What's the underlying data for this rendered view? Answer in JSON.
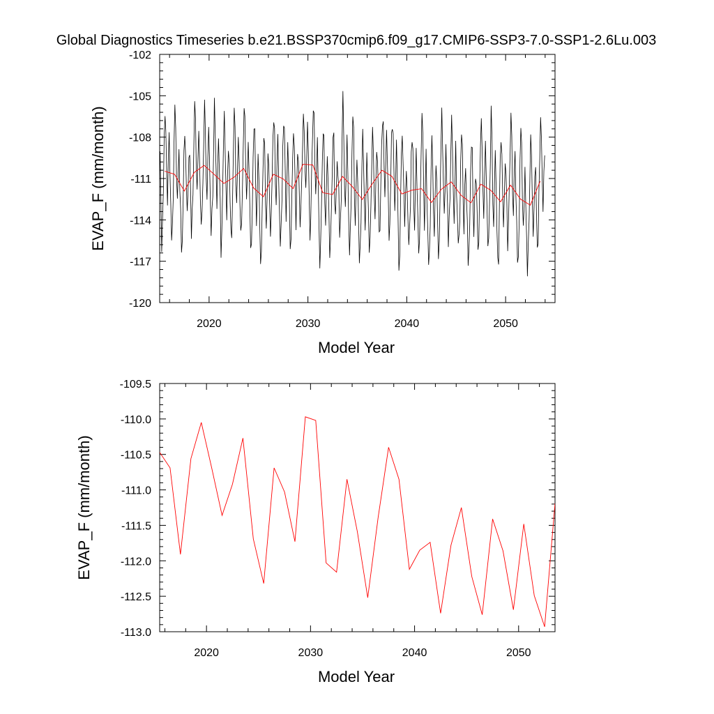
{
  "title": "Global Diagnostics Timeseries b.e21.BSSP370cmip6.f09_g17.CMIP6-SSP3-7.0-SSP1-2.6Lu.003",
  "colors": {
    "monthly": "#000000",
    "annual": "#ff0000",
    "axis": "#000000",
    "background": "#ffffff"
  },
  "chart_data": [
    {
      "type": "line",
      "panel": "top",
      "xlabel": "Model Year",
      "ylabel": "EVAP_F (mm/month)",
      "xlim": [
        2015,
        2055
      ],
      "ylim": [
        -120,
        -102
      ],
      "x_ticks": [
        2020,
        2030,
        2040,
        2050
      ],
      "x_tick_labels": [
        "2020",
        "2030",
        "2040",
        "2050"
      ],
      "y_ticks": [
        -120,
        -117,
        -114,
        -111,
        -108,
        -105,
        -102
      ],
      "y_tick_labels": [
        "-120",
        "-117",
        "-114",
        "-111",
        "-108",
        "-105",
        "-102"
      ],
      "series": [
        {
          "name": "monthly",
          "start_year": 2015.04,
          "step": 0.0833333,
          "monthly_profile": [
            -110.5,
            -113.0,
            -115.8,
            -114.8,
            -112.2,
            -109.0,
            -106.5,
            -107.9,
            -111.4,
            -113.5,
            -110.9,
            -108.6
          ],
          "annual_means": [
            -110.47,
            -110.69,
            -111.91,
            -110.56,
            -110.05,
            -110.69,
            -111.36,
            -110.92,
            -110.27,
            -111.69,
            -112.32,
            -110.69,
            -111.03,
            -111.73,
            -109.97,
            -110.02,
            -112.03,
            -112.16,
            -110.85,
            -111.59,
            -112.52,
            -111.39,
            -110.4,
            -110.85,
            -112.12,
            -111.85,
            -111.74,
            -112.74,
            -111.78,
            -111.25,
            -112.22,
            -112.76,
            -111.41,
            -111.86,
            -112.69,
            -111.48,
            -112.49,
            -112.93,
            -111.19
          ]
        },
        {
          "name": "annual mean",
          "x": [
            2015.5,
            2016.5,
            2017.5,
            2018.5,
            2019.5,
            2020.5,
            2021.5,
            2022.5,
            2023.5,
            2024.5,
            2025.5,
            2026.5,
            2027.5,
            2028.5,
            2029.5,
            2030.5,
            2031.5,
            2032.5,
            2033.5,
            2034.5,
            2035.5,
            2036.5,
            2037.5,
            2038.5,
            2039.5,
            2040.5,
            2041.5,
            2042.5,
            2043.5,
            2044.5,
            2045.5,
            2046.5,
            2047.5,
            2048.5,
            2049.5,
            2050.5,
            2051.5,
            2052.5,
            2053.5
          ],
          "values": [
            -110.47,
            -110.69,
            -111.91,
            -110.56,
            -110.05,
            -110.69,
            -111.36,
            -110.92,
            -110.27,
            -111.69,
            -112.32,
            -110.69,
            -111.03,
            -111.73,
            -109.97,
            -110.02,
            -112.03,
            -112.16,
            -110.85,
            -111.59,
            -112.52,
            -111.39,
            -110.4,
            -110.85,
            -112.12,
            -111.85,
            -111.74,
            -112.74,
            -111.78,
            -111.25,
            -112.22,
            -112.76,
            -111.41,
            -111.86,
            -112.69,
            -111.48,
            -112.49,
            -112.93,
            -111.19
          ]
        }
      ]
    },
    {
      "type": "line",
      "panel": "bottom",
      "xlabel": "Model Year",
      "ylabel": "EVAP_F (mm/month)",
      "xlim": [
        2015.5,
        2053.5
      ],
      "ylim": [
        -113.0,
        -109.5
      ],
      "x_ticks": [
        2020,
        2030,
        2040,
        2050
      ],
      "x_tick_labels": [
        "2020",
        "2030",
        "2040",
        "2050"
      ],
      "y_ticks": [
        -113.0,
        -112.5,
        -112.0,
        -111.5,
        -111.0,
        -110.5,
        -110.0,
        -109.5
      ],
      "y_tick_labels": [
        "-113.0",
        "-112.5",
        "-112.0",
        "-111.5",
        "-111.0",
        "-110.5",
        "-110.0",
        "-109.5"
      ],
      "series": [
        {
          "name": "annual mean",
          "x": [
            2015.5,
            2016.5,
            2017.5,
            2018.5,
            2019.5,
            2020.5,
            2021.5,
            2022.5,
            2023.5,
            2024.5,
            2025.5,
            2026.5,
            2027.5,
            2028.5,
            2029.5,
            2030.5,
            2031.5,
            2032.5,
            2033.5,
            2034.5,
            2035.5,
            2036.5,
            2037.5,
            2038.5,
            2039.5,
            2040.5,
            2041.5,
            2042.5,
            2043.5,
            2044.5,
            2045.5,
            2046.5,
            2047.5,
            2048.5,
            2049.5,
            2050.5,
            2051.5,
            2052.5,
            2053.5
          ],
          "values": [
            -110.47,
            -110.69,
            -111.91,
            -110.56,
            -110.05,
            -110.69,
            -111.36,
            -110.92,
            -110.27,
            -111.69,
            -112.32,
            -110.69,
            -111.03,
            -111.73,
            -109.97,
            -110.02,
            -112.03,
            -112.16,
            -110.85,
            -111.59,
            -112.52,
            -111.39,
            -110.4,
            -110.85,
            -112.12,
            -111.85,
            -111.74,
            -112.74,
            -111.78,
            -111.25,
            -112.22,
            -112.76,
            -111.41,
            -111.86,
            -112.69,
            -111.48,
            -112.49,
            -112.93,
            -111.19
          ]
        }
      ]
    }
  ]
}
